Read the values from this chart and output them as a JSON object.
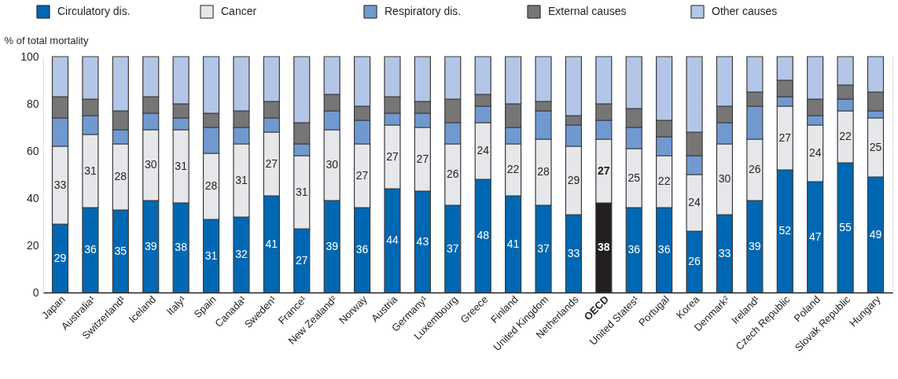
{
  "chart_data": {
    "type": "bar",
    "stacked": true,
    "ylabel": "% of total mortality",
    "categories": [
      "Japan",
      "Australia¹",
      "Switzerland¹",
      "Iceland",
      "Italy¹",
      "Spain",
      "Canada¹",
      "Sweden¹",
      "France¹",
      "New Zealand²",
      "Norway",
      "Austria",
      "Germany¹",
      "Luxembourg",
      "Greece",
      "Finland",
      "United Kingdom",
      "Netherlands",
      "OECD",
      "United States¹",
      "Portugal",
      "Korea",
      "Denmark²",
      "Ireland¹",
      "Czech Republic",
      "Poland",
      "Slovak Republic",
      "Hungary"
    ],
    "series": [
      {
        "name": "Circulatory dis.",
        "color": "#0068b3",
        "colors": [
          "#0068b3",
          "#0068b3",
          "#0068b3",
          "#0068b3",
          "#0068b3",
          "#0068b3",
          "#0068b3",
          "#0068b3",
          "#0068b3",
          "#0068b3",
          "#0068b3",
          "#0068b3",
          "#0068b3",
          "#0068b3",
          "#0068b3",
          "#0068b3",
          "#0068b3",
          "#0068b3",
          "#231f20",
          "#0068b3",
          "#0068b3",
          "#0068b3",
          "#0068b3",
          "#0068b3",
          "#0068b3",
          "#0068b3",
          "#0068b3",
          "#0068b3"
        ],
        "values": [
          29,
          36,
          35,
          39,
          38,
          31,
          32,
          41,
          27,
          39,
          36,
          44,
          43,
          37,
          48,
          41,
          37,
          33,
          38,
          36,
          36,
          26,
          33,
          39,
          52,
          47,
          55,
          49
        ],
        "value_labels": [
          "29",
          "36",
          "35",
          "39",
          "38",
          "31",
          "32",
          "41",
          "27",
          "39",
          "36",
          "44",
          "43",
          "37",
          "48",
          "41",
          "37",
          "33",
          "38",
          "36",
          "36",
          "26",
          "33",
          "39",
          "52",
          "47",
          "55",
          "49"
        ]
      },
      {
        "name": "Cancer",
        "color": "#e6e7ea",
        "values": [
          33,
          31,
          28,
          30,
          31,
          28,
          31,
          27,
          31,
          30,
          27,
          27,
          27,
          26,
          24,
          22,
          28,
          29,
          27,
          25,
          22,
          24,
          30,
          26,
          27,
          24,
          22,
          25
        ],
        "value_labels": [
          "33",
          "31",
          "28",
          "30",
          "31",
          "28",
          "31",
          "27",
          "31",
          "30",
          "27",
          "27",
          "27",
          "26",
          "24",
          "22",
          "28",
          "29",
          "27",
          "25",
          "22",
          "24",
          "30",
          "26",
          "27",
          "24",
          "22",
          "25"
        ]
      },
      {
        "name": "Respiratory dis.",
        "color": "#7099d0",
        "values": [
          12,
          8,
          6,
          7,
          5,
          11,
          7,
          6,
          5,
          8,
          10,
          5,
          6,
          9,
          7,
          7,
          12,
          9,
          8,
          9,
          8,
          8,
          9,
          14,
          4,
          4,
          5,
          3
        ]
      },
      {
        "name": "External causes",
        "color": "#767676",
        "values": [
          9,
          7,
          8,
          7,
          6,
          6,
          7,
          7,
          9,
          7,
          6,
          7,
          5,
          10,
          5,
          10,
          4,
          4,
          7,
          8,
          7,
          10,
          7,
          6,
          7,
          7,
          6,
          8
        ]
      },
      {
        "name": "Other causes",
        "color": "#b4c6e7",
        "values": [
          17,
          18,
          23,
          17,
          20,
          24,
          23,
          19,
          28,
          16,
          21,
          17,
          19,
          18,
          16,
          20,
          19,
          25,
          20,
          22,
          27,
          32,
          21,
          15,
          10,
          18,
          12,
          15
        ]
      }
    ],
    "ylim": [
      0,
      100
    ],
    "yticks": [
      0,
      20,
      40,
      60,
      80,
      100
    ],
    "grid": "y",
    "legend": "top"
  }
}
